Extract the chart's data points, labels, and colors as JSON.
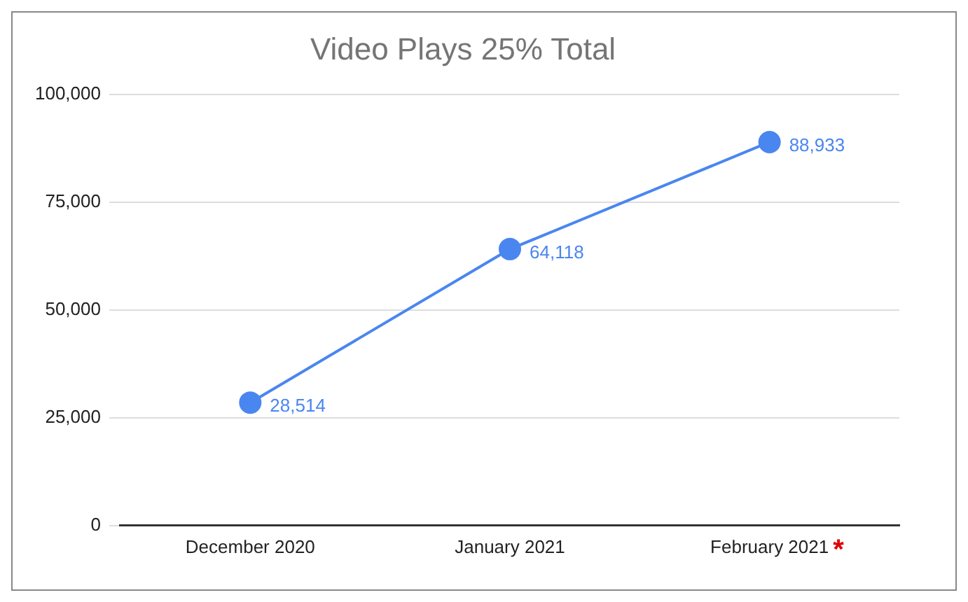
{
  "chart_data": {
    "type": "line",
    "title": "Video Plays 25% Total",
    "categories": [
      "December 2020",
      "January 2021",
      "February 2021"
    ],
    "series": [
      {
        "color": "#4a86f0",
        "values": [
          28514,
          64118,
          88933
        ],
        "value_labels": [
          "28,514",
          "64,118",
          "88,933"
        ]
      }
    ],
    "ylim": [
      0,
      100000
    ],
    "yticks": [
      {
        "value": 0,
        "label": "0"
      },
      {
        "value": 25000,
        "label": "25,000"
      },
      {
        "value": 50000,
        "label": "50,000"
      },
      {
        "value": 75000,
        "label": "75,000"
      },
      {
        "value": 100000,
        "label": "100,000"
      }
    ],
    "grid": "y",
    "legend": false,
    "marker": "circle",
    "line_style": "solid",
    "annotations": [
      "*"
    ]
  }
}
